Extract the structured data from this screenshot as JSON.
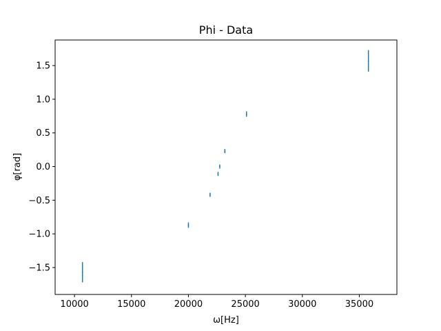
{
  "chart_data": {
    "type": "scatter",
    "title": "Phi - Data",
    "xlabel": "ω[Hz]",
    "ylabel": "φ[rad]",
    "xlim": [
      8300,
      38300
    ],
    "ylim": [
      -1.9,
      1.88
    ],
    "xticks": [
      10000,
      15000,
      20000,
      25000,
      30000,
      35000
    ],
    "xtick_labels": [
      "10000",
      "15000",
      "20000",
      "25000",
      "30000",
      "35000"
    ],
    "yticks": [
      -1.5,
      -1.0,
      -0.5,
      0.0,
      0.5,
      1.0,
      1.5
    ],
    "ytick_labels": [
      "−1.5",
      "−1.0",
      "−0.5",
      "0.0",
      "0.5",
      "1.0",
      "1.5"
    ],
    "grid": false,
    "color": "#1f77b4",
    "points": [
      {
        "x": 10700,
        "y": -1.57,
        "yerr": 0.15
      },
      {
        "x": 20000,
        "y": -0.87,
        "yerr": 0.04
      },
      {
        "x": 21900,
        "y": -0.42,
        "yerr": 0.03
      },
      {
        "x": 22600,
        "y": -0.11,
        "yerr": 0.03
      },
      {
        "x": 22750,
        "y": 0.0,
        "yerr": 0.03
      },
      {
        "x": 23200,
        "y": 0.23,
        "yerr": 0.03
      },
      {
        "x": 25100,
        "y": 0.78,
        "yerr": 0.04
      },
      {
        "x": 35800,
        "y": 1.57,
        "yerr": 0.16
      }
    ]
  }
}
